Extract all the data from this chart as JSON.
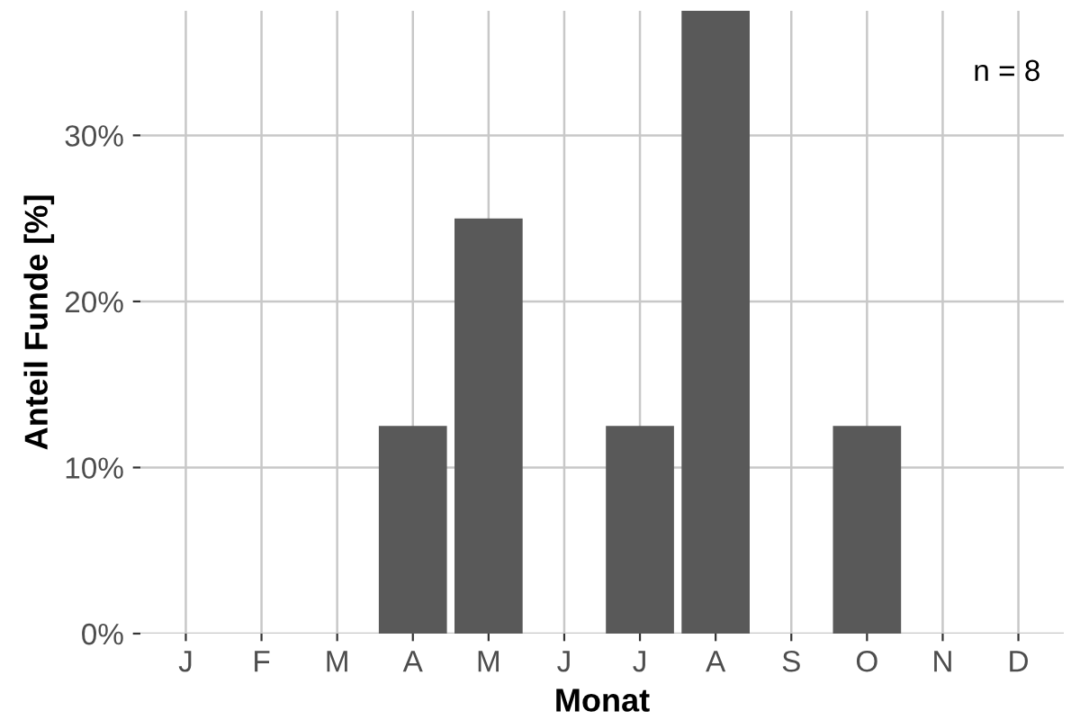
{
  "chart_data": {
    "type": "bar",
    "xlabel": "Monat",
    "ylabel": "Anteil Funde [%]",
    "categories": [
      "J",
      "F",
      "M",
      "A",
      "M",
      "J",
      "J",
      "A",
      "S",
      "O",
      "N",
      "D"
    ],
    "values": [
      0,
      0,
      0,
      12.5,
      25,
      0,
      12.5,
      37.5,
      0,
      12.5,
      0,
      0
    ],
    "color": "#595959",
    "ylim": [
      0,
      37.5
    ],
    "yticks": [
      {
        "value": 0,
        "label": "0%"
      },
      {
        "value": 10,
        "label": "10%"
      },
      {
        "value": 20,
        "label": "20%"
      },
      {
        "value": 30,
        "label": "30%"
      }
    ],
    "grid": true,
    "annotations": [
      "n = 8"
    ]
  }
}
